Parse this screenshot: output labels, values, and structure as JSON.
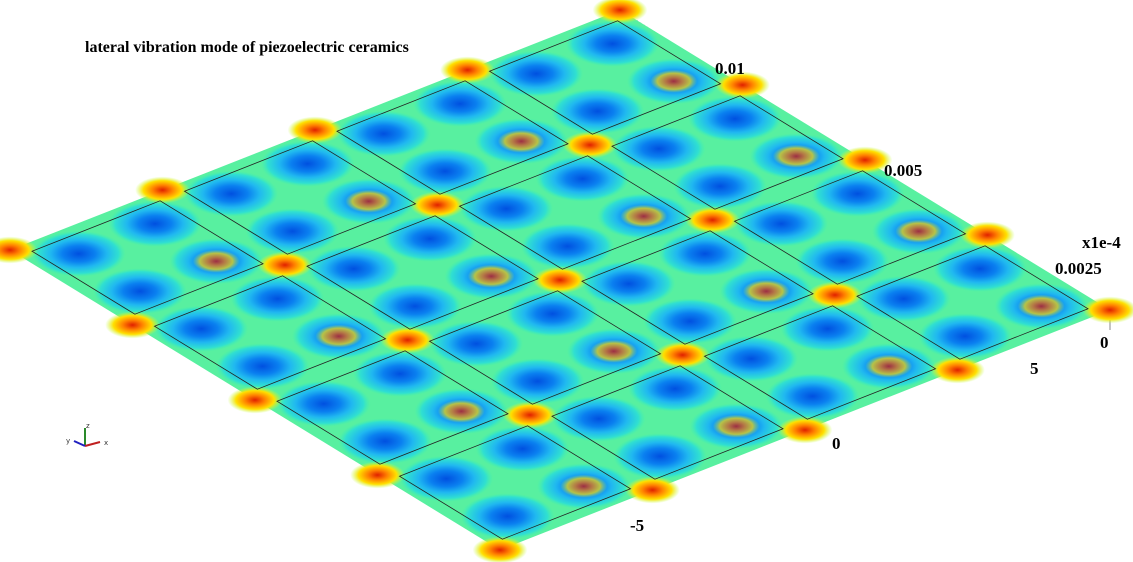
{
  "title": "lateral vibration mode of piezoelectric ceramics",
  "z_axis": {
    "ticks": [
      "0.01",
      "0.005",
      "0.0025"
    ],
    "scale": "x1e-4"
  },
  "x_axis": {
    "ticks": [
      "0",
      "5"
    ]
  },
  "y_axis": {
    "ticks": [
      "0",
      "-5"
    ]
  },
  "triad": {
    "y": "y",
    "z": "z",
    "x": "x"
  }
}
